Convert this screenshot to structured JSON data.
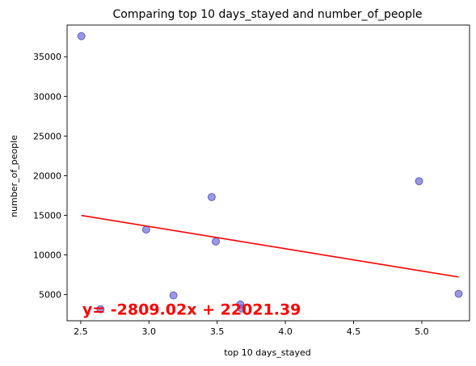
{
  "chart_data": {
    "type": "scatter",
    "title": "Comparing top 10 days_stayed and  number_of_people",
    "xlabel": "top 10 days_stayed",
    "ylabel": "number_of_people",
    "xlim": [
      2.4,
      5.35
    ],
    "ylim": [
      1700,
      39000
    ],
    "xticks": [
      2.5,
      3.0,
      3.5,
      4.0,
      4.5,
      5.0
    ],
    "xtick_labels": [
      "2.5",
      "3.0",
      "3.5",
      "4.0",
      "4.5",
      "5.0"
    ],
    "yticks": [
      5000,
      10000,
      15000,
      20000,
      25000,
      30000,
      35000
    ],
    "ytick_labels": [
      "5000",
      "10000",
      "15000",
      "20000",
      "25000",
      "30000",
      "35000"
    ],
    "grid": false,
    "series": [
      {
        "type": "scatter",
        "color": "#6b6bdc",
        "x": [
          2.505,
          2.645,
          2.98,
          3.18,
          3.46,
          3.49,
          3.67,
          3.68,
          4.98,
          5.27
        ],
        "y": [
          37600,
          3150,
          13200,
          4900,
          17300,
          11700,
          3750,
          3250,
          19300,
          5100
        ]
      },
      {
        "type": "line",
        "color": "#ff0000",
        "x": [
          2.505,
          5.27
        ],
        "y": [
          14984.5,
          7217.5
        ]
      }
    ],
    "annotation": {
      "text": "y= -2809.02x + 22021.39",
      "color": "#ff0000",
      "x": 2.5,
      "y": 3200
    }
  }
}
